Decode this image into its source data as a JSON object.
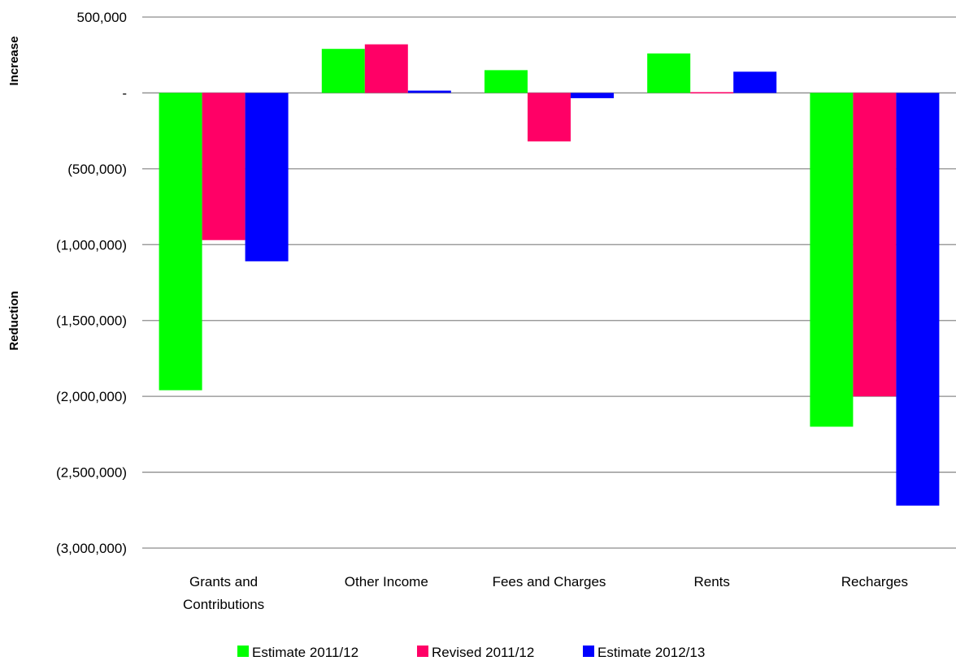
{
  "chart_data": {
    "type": "bar",
    "title": "",
    "xlabel": "",
    "ylabel_top": "Increase",
    "ylabel_bottom": "Reduction",
    "ylim": [
      -3000000,
      500000
    ],
    "yticks": [
      500000,
      0,
      -500000,
      -1000000,
      -1500000,
      -2000000,
      -2500000,
      -3000000
    ],
    "ytick_labels": [
      "500,000",
      "-",
      "(500,000)",
      "(1,000,000)",
      "(1,500,000)",
      "(2,000,000)",
      "(2,500,000)",
      "(3,000,000)"
    ],
    "grid": true,
    "legend_position": "bottom",
    "categories": [
      [
        "Grants and",
        "Contributions"
      ],
      [
        "Other Income"
      ],
      [
        "Fees and Charges"
      ],
      [
        "Rents"
      ],
      [
        "Recharges"
      ]
    ],
    "series": [
      {
        "name": "Estimate  2011/12",
        "color": "#00ff00",
        "values": [
          -1960000,
          290000,
          150000,
          260000,
          -2200000
        ]
      },
      {
        "name": "Revised 2011/12",
        "color": "#ff0066",
        "values": [
          -970000,
          320000,
          -320000,
          5000,
          -2000000
        ]
      },
      {
        "name": "Estimate  2012/13",
        "color": "#0000ff",
        "values": [
          -1110000,
          15000,
          -35000,
          140000,
          -2720000
        ]
      }
    ]
  }
}
